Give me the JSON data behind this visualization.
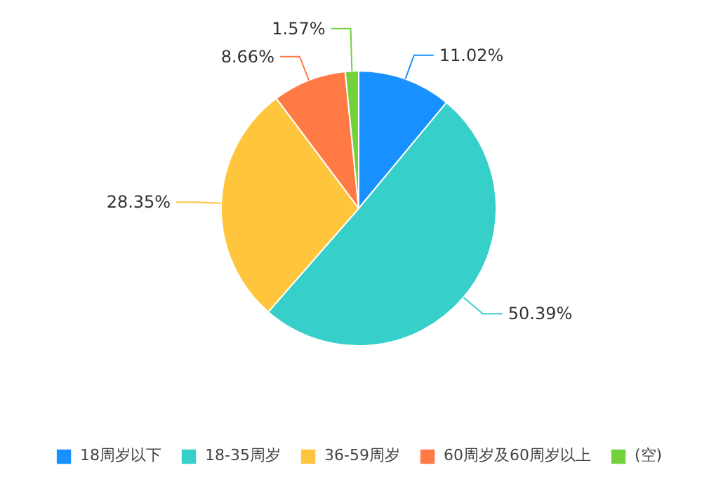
{
  "chart_data": {
    "type": "pie",
    "categories": [
      "18周岁以下",
      "18-35周岁",
      "36-59周岁",
      "60周岁及60周岁以上",
      "(空)"
    ],
    "values": [
      11.02,
      50.39,
      28.35,
      8.66,
      1.57
    ],
    "colors": [
      "#1890ff",
      "#36cfc9",
      "#ffc53d",
      "#ff7a45",
      "#73d13d"
    ],
    "value_labels": [
      "11.02%",
      "50.39%",
      "28.35%",
      "8.66%",
      "1.57%"
    ],
    "legend": "bottom"
  }
}
